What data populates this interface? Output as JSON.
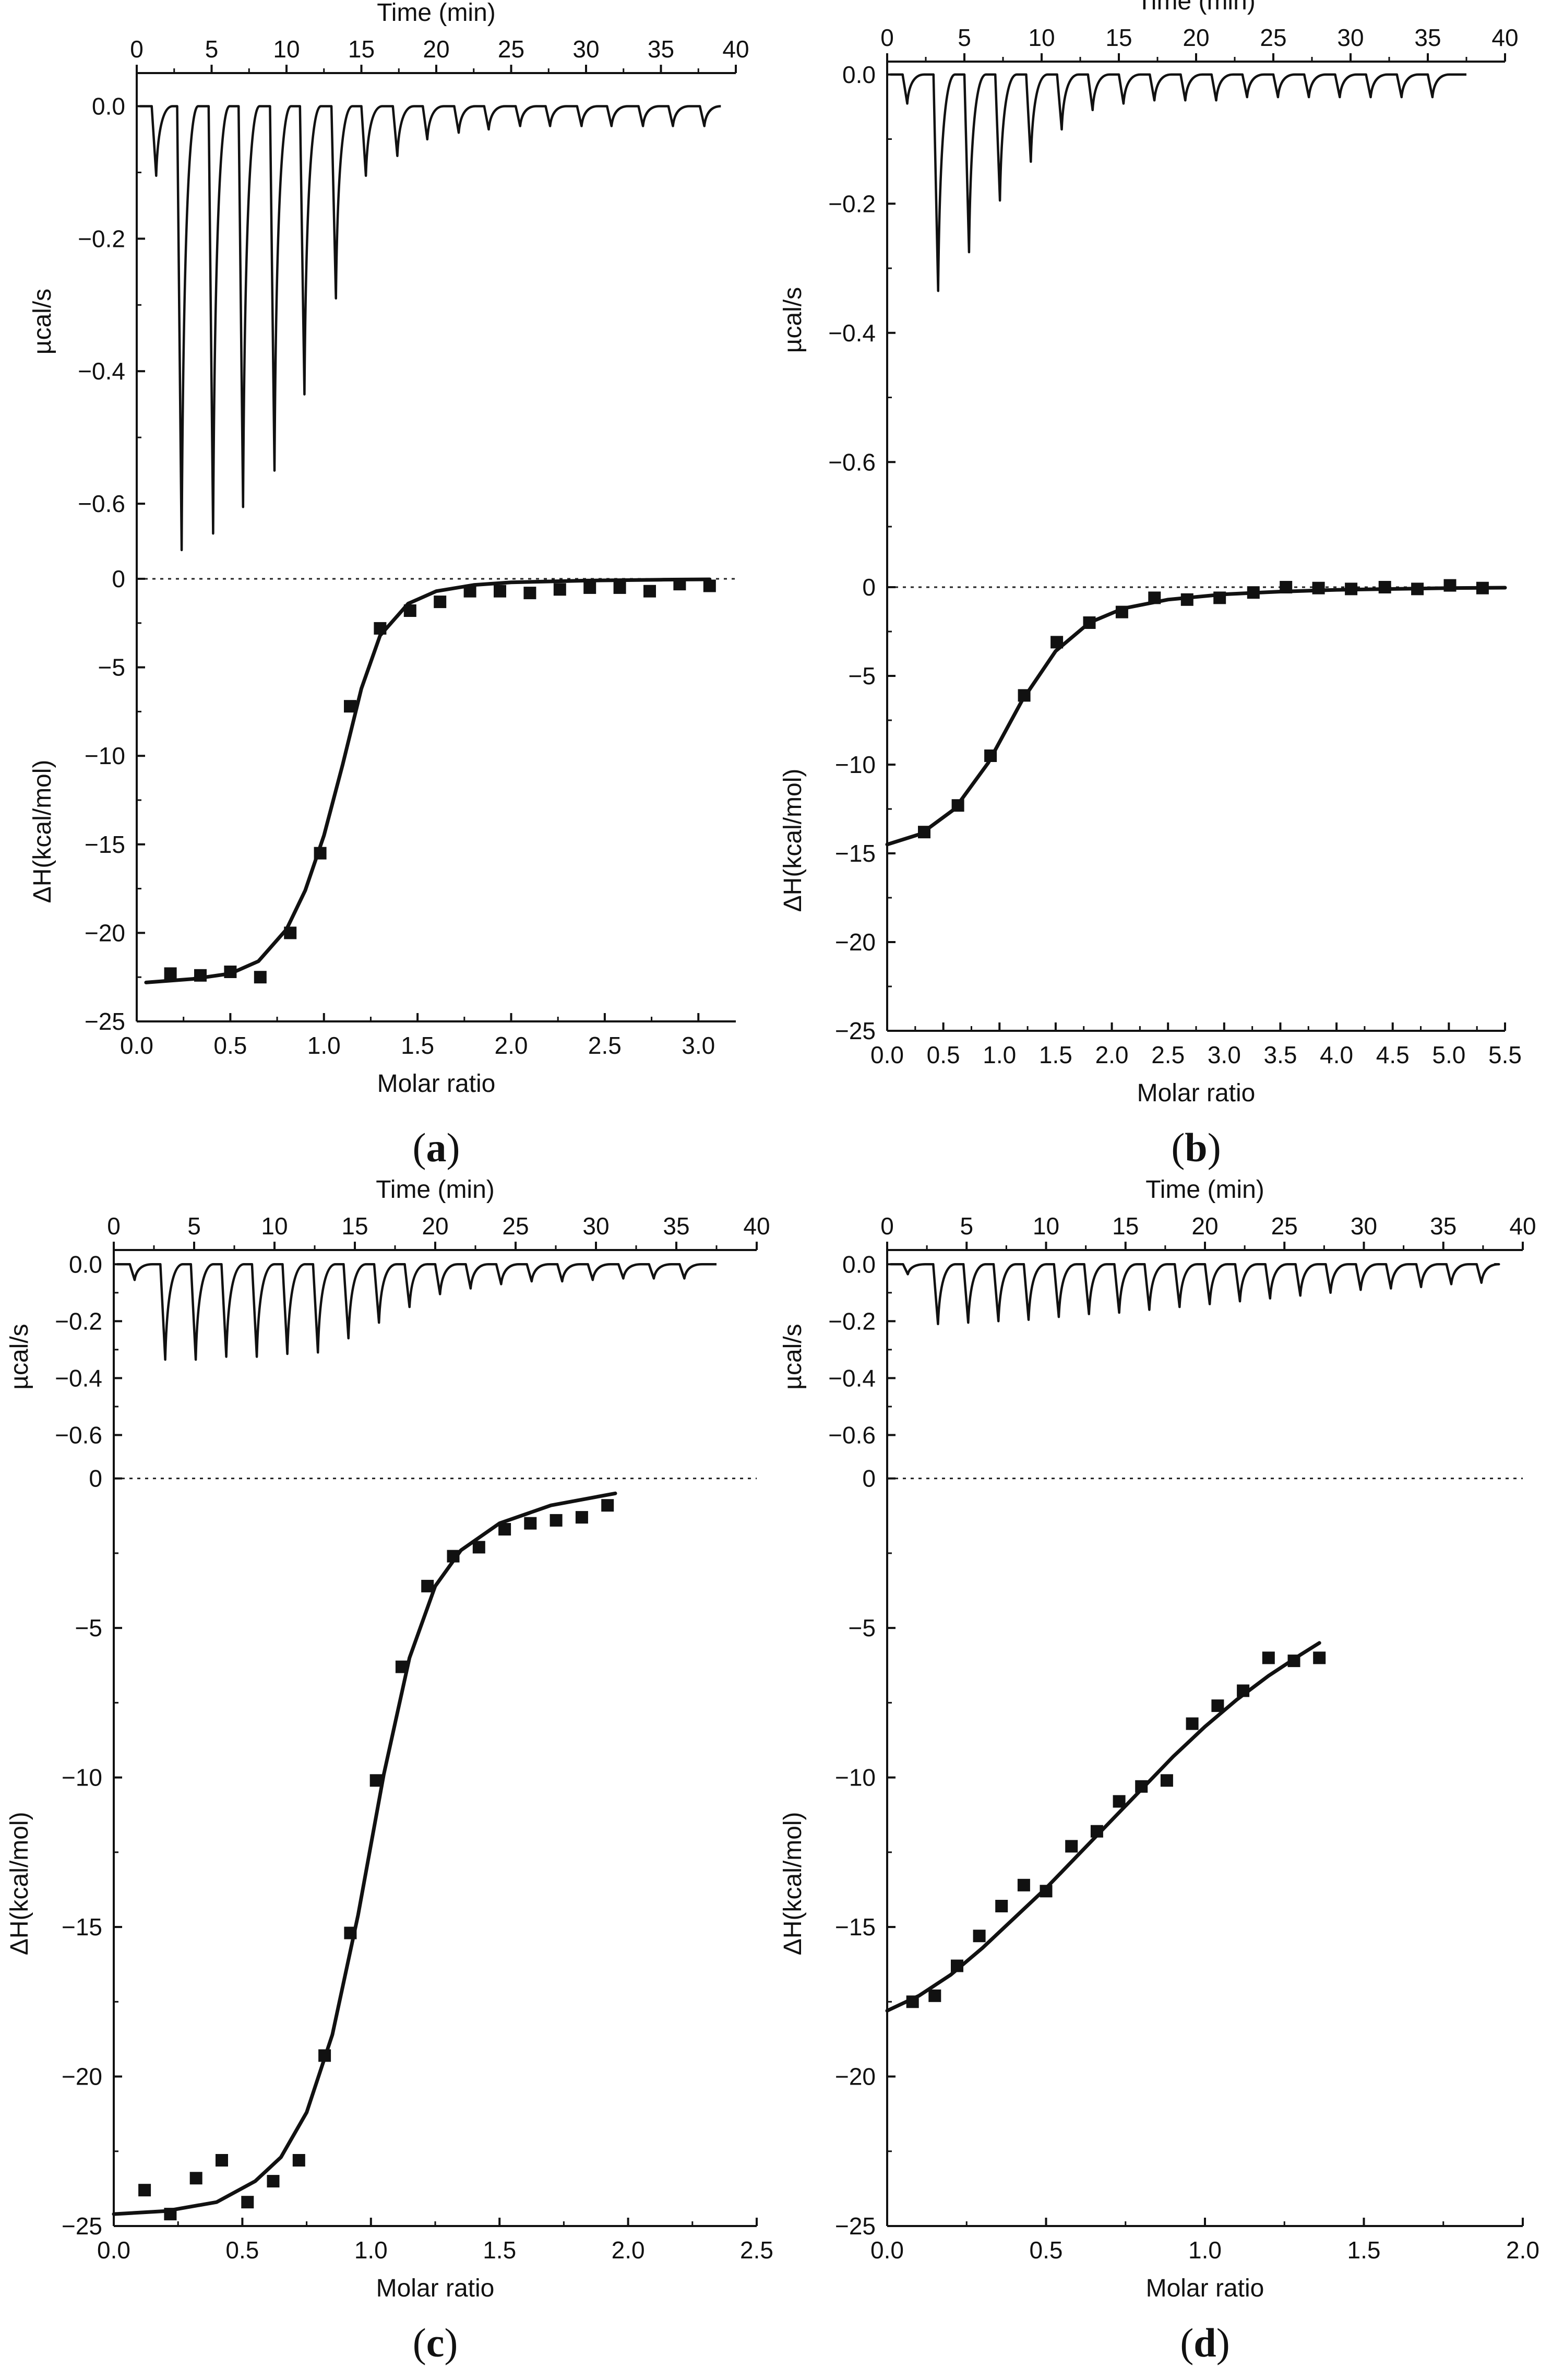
{
  "chart_data": [
    {
      "type": "isothermal_titration_calorimetry",
      "panel_label": "a",
      "raw": {
        "xlabel": "Time (min)",
        "ylabel": "µcal/s",
        "xlim": [
          0,
          40
        ],
        "ylim": [
          -0.7,
          0.05
        ],
        "xticks": [
          "0",
          "5",
          "10",
          "15",
          "20",
          "25",
          "30",
          "35",
          "40"
        ],
        "yticks": [
          "0.0",
          "−0.2",
          "−0.4",
          "−0.6"
        ],
        "baseline": 0.0,
        "injections_min": [
          1.0,
          2.7,
          4.8,
          6.8,
          8.9,
          10.9,
          13.0,
          15.0,
          17.1,
          19.1,
          21.2,
          23.2,
          25.3,
          27.3,
          29.4,
          31.4,
          33.5,
          35.5,
          37.6
        ],
        "peak_depths": [
          -0.105,
          -0.67,
          -0.645,
          -0.605,
          -0.55,
          -0.435,
          -0.29,
          -0.105,
          -0.075,
          -0.05,
          -0.04,
          -0.035,
          -0.03,
          -0.03,
          -0.03,
          -0.03,
          -0.03,
          -0.03,
          -0.03
        ],
        "end_min": 39.0
      },
      "integrated": {
        "xlabel": "Molar ratio",
        "ylabel": "ΔH(kcal/mol)",
        "xlim": [
          0,
          3.2
        ],
        "ylim": [
          -25,
          0.5
        ],
        "xticks": [
          "0.0",
          "0.5",
          "1.0",
          "1.5",
          "2.0",
          "2.5",
          "3.0"
        ],
        "yticks": [
          "0",
          "−5",
          "−10",
          "−15",
          "−20",
          "−25"
        ],
        "points_x": [
          0.18,
          0.34,
          0.5,
          0.66,
          0.82,
          0.98,
          1.14,
          1.3,
          1.46,
          1.62,
          1.78,
          1.94,
          2.1,
          2.26,
          2.42,
          2.58,
          2.74,
          2.9,
          3.06
        ],
        "points_y": [
          -22.3,
          -22.4,
          -22.2,
          -22.5,
          -20.0,
          -15.5,
          -7.2,
          -2.8,
          -1.8,
          -1.3,
          -0.7,
          -0.7,
          -0.8,
          -0.6,
          -0.5,
          -0.5,
          -0.7,
          -0.3,
          -0.4
        ],
        "fit_x": [
          0.05,
          0.3,
          0.5,
          0.65,
          0.8,
          0.9,
          1.0,
          1.1,
          1.2,
          1.3,
          1.45,
          1.6,
          1.8,
          2.0,
          2.4,
          2.8,
          3.06
        ],
        "fit_y": [
          -22.8,
          -22.6,
          -22.3,
          -21.6,
          -19.8,
          -17.6,
          -14.5,
          -10.5,
          -6.2,
          -3.2,
          -1.4,
          -0.7,
          -0.35,
          -0.2,
          -0.1,
          -0.05,
          -0.03
        ]
      }
    },
    {
      "type": "isothermal_titration_calorimetry",
      "panel_label": "b",
      "raw": {
        "xlabel": "Time (min)",
        "ylabel": "µcal/s",
        "xlim": [
          0,
          40
        ],
        "ylim": [
          -0.78,
          0.02
        ],
        "xticks": [
          "0",
          "5",
          "10",
          "15",
          "20",
          "25",
          "30",
          "35",
          "40"
        ],
        "yticks": [
          "0.0",
          "−0.2",
          "−0.4",
          "−0.6"
        ],
        "baseline": 0.0,
        "injections_min": [
          1.0,
          3.0,
          5.0,
          7.0,
          9.0,
          11.0,
          13.0,
          15.0,
          17.0,
          19.0,
          21.0,
          23.0,
          25.0,
          27.0,
          29.0,
          31.0,
          33.0,
          35.0
        ],
        "peak_depths": [
          -0.045,
          -0.335,
          -0.275,
          -0.195,
          -0.135,
          -0.085,
          -0.055,
          -0.045,
          -0.04,
          -0.04,
          -0.04,
          -0.035,
          -0.035,
          -0.035,
          -0.035,
          -0.035,
          -0.035,
          -0.035
        ],
        "end_min": 37.5
      },
      "integrated": {
        "xlabel": "Molar ratio",
        "ylabel": "ΔH(kcal/mol)",
        "xlim": [
          0,
          5.5
        ],
        "ylim": [
          -25,
          0.5
        ],
        "xticks": [
          "0.0",
          "0.5",
          "1.0",
          "1.5",
          "2.0",
          "2.5",
          "3.0",
          "3.5",
          "4.0",
          "4.5",
          "5.0",
          "5.5"
        ],
        "yticks": [
          "0",
          "−5",
          "−10",
          "−15",
          "−20",
          "−25"
        ],
        "points_x": [
          0.33,
          0.63,
          0.92,
          1.22,
          1.51,
          1.8,
          2.09,
          2.38,
          2.67,
          2.96,
          3.26,
          3.55,
          3.84,
          4.13,
          4.43,
          4.72,
          5.01,
          5.3
        ],
        "points_y": [
          -13.8,
          -12.3,
          -9.5,
          -6.1,
          -3.1,
          -2.0,
          -1.4,
          -0.6,
          -0.7,
          -0.6,
          -0.3,
          0.0,
          -0.05,
          -0.1,
          0.0,
          -0.1,
          0.1,
          -0.05
        ],
        "fit_x": [
          0.0,
          0.3,
          0.6,
          0.9,
          1.2,
          1.5,
          1.8,
          2.1,
          2.5,
          3.0,
          3.5,
          4.0,
          4.5,
          5.0,
          5.5
        ],
        "fit_y": [
          -14.5,
          -13.9,
          -12.5,
          -9.9,
          -6.4,
          -3.6,
          -2.0,
          -1.2,
          -0.7,
          -0.4,
          -0.25,
          -0.15,
          -0.1,
          -0.05,
          -0.03
        ]
      }
    },
    {
      "type": "isothermal_titration_calorimetry",
      "panel_label": "c",
      "raw": {
        "xlabel": "Time (min)",
        "ylabel": "µcal/s",
        "xlim": [
          0,
          40
        ],
        "ylim": [
          -0.7,
          0.05
        ],
        "xticks": [
          "0",
          "5",
          "10",
          "15",
          "20",
          "25",
          "30",
          "35",
          "40"
        ],
        "yticks": [
          "0.0",
          "−0.2",
          "−0.4",
          "−0.6"
        ],
        "baseline": 0.0,
        "injections_min": [
          1.0,
          2.9,
          4.8,
          6.7,
          8.6,
          10.5,
          12.4,
          14.3,
          16.2,
          18.1,
          20.0,
          21.9,
          23.8,
          25.7,
          27.6,
          29.5,
          31.4,
          33.3,
          35.2
        ],
        "peak_depths": [
          -0.055,
          -0.335,
          -0.335,
          -0.325,
          -0.325,
          -0.315,
          -0.31,
          -0.26,
          -0.205,
          -0.15,
          -0.105,
          -0.085,
          -0.07,
          -0.06,
          -0.06,
          -0.055,
          -0.05,
          -0.05,
          -0.05
        ],
        "end_min": 37.5
      },
      "integrated": {
        "xlabel": "Molar ratio",
        "ylabel": "ΔH(kcal/mol)",
        "xlim": [
          0,
          2.5
        ],
        "ylim": [
          -25,
          0.5
        ],
        "xticks": [
          "0.0",
          "0.5",
          "1.0",
          "1.5",
          "2.0",
          "2.5"
        ],
        "yticks": [
          "0",
          "−5",
          "−10",
          "−15",
          "−20",
          "−25"
        ],
        "points_x": [
          0.12,
          0.22,
          0.32,
          0.42,
          0.52,
          0.62,
          0.72,
          0.82,
          0.92,
          1.02,
          1.12,
          1.22,
          1.32,
          1.42,
          1.52,
          1.62,
          1.72,
          1.82,
          1.92
        ],
        "points_y": [
          -23.8,
          -24.6,
          -23.4,
          -22.8,
          -24.2,
          -23.5,
          -22.8,
          -19.3,
          -15.2,
          -10.1,
          -6.3,
          -3.6,
          -2.6,
          -2.3,
          -1.7,
          -1.5,
          -1.4,
          -1.3,
          -0.9
        ],
        "fit_x": [
          0.0,
          0.2,
          0.4,
          0.55,
          0.65,
          0.75,
          0.85,
          0.95,
          1.05,
          1.15,
          1.25,
          1.35,
          1.5,
          1.7,
          1.95
        ],
        "fit_y": [
          -24.6,
          -24.5,
          -24.2,
          -23.5,
          -22.7,
          -21.2,
          -18.6,
          -14.6,
          -9.9,
          -6.0,
          -3.6,
          -2.4,
          -1.5,
          -0.9,
          -0.5
        ]
      }
    },
    {
      "type": "isothermal_titration_calorimetry",
      "panel_label": "d",
      "raw": {
        "xlabel": "Time (min)",
        "ylabel": "µcal/s",
        "xlim": [
          0,
          40
        ],
        "ylim": [
          -0.7,
          0.05
        ],
        "xticks": [
          "0",
          "5",
          "10",
          "15",
          "20",
          "25",
          "30",
          "35",
          "40"
        ],
        "yticks": [
          "0.0",
          "−0.2",
          "−0.4",
          "−0.6"
        ],
        "baseline": 0.0,
        "injections_min": [
          1.0,
          2.9,
          4.8,
          6.7,
          8.6,
          10.5,
          12.4,
          14.3,
          16.2,
          18.1,
          20.0,
          21.9,
          23.8,
          25.7,
          27.6,
          29.5,
          31.4,
          33.3,
          35.2,
          37.1
        ],
        "peak_depths": [
          -0.035,
          -0.21,
          -0.205,
          -0.2,
          -0.195,
          -0.185,
          -0.175,
          -0.17,
          -0.16,
          -0.15,
          -0.14,
          -0.13,
          -0.12,
          -0.11,
          -0.1,
          -0.09,
          -0.085,
          -0.08,
          -0.07,
          -0.065
        ],
        "end_min": 38.2
      },
      "integrated": {
        "xlabel": "Molar ratio",
        "ylabel": "ΔH(kcal/mol)",
        "xlim": [
          0,
          2.0
        ],
        "ylim": [
          -25,
          0.5
        ],
        "xticks": [
          "0.0",
          "0.5",
          "1.0",
          "1.5",
          "2.0"
        ],
        "yticks": [
          "0",
          "−5",
          "−10",
          "−15",
          "−20",
          "−25"
        ],
        "points_x": [
          0.08,
          0.15,
          0.22,
          0.29,
          0.36,
          0.43,
          0.5,
          0.58,
          0.66,
          0.73,
          0.8,
          0.88,
          0.96,
          1.04,
          1.12,
          1.2,
          1.28,
          1.36
        ],
        "points_y": [
          -17.5,
          -17.3,
          -16.3,
          -15.3,
          -14.3,
          -13.6,
          -13.8,
          -12.3,
          -11.8,
          -10.8,
          -10.3,
          -10.1,
          -8.2,
          -7.6,
          -7.1,
          -6.0,
          -6.1,
          -6.0
        ],
        "fit_x": [
          0.0,
          0.1,
          0.2,
          0.3,
          0.4,
          0.5,
          0.6,
          0.7,
          0.8,
          0.9,
          1.0,
          1.1,
          1.2,
          1.3,
          1.36
        ],
        "fit_y": [
          -17.8,
          -17.3,
          -16.6,
          -15.7,
          -14.7,
          -13.7,
          -12.6,
          -11.5,
          -10.4,
          -9.3,
          -8.3,
          -7.4,
          -6.6,
          -5.9,
          -5.5
        ]
      }
    }
  ]
}
